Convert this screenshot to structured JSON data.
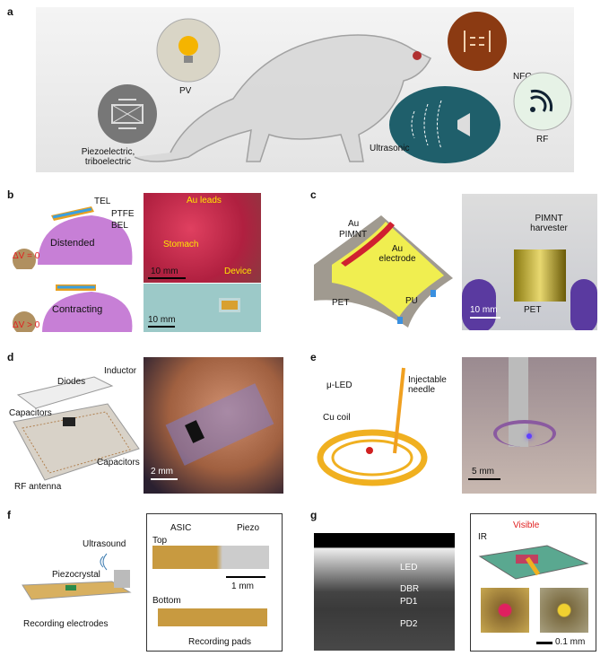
{
  "panels": {
    "a": {
      "label": "a",
      "sources": [
        "PV",
        "Piezoelectric, triboelectric",
        "NFC",
        "Ultrasonic",
        "RF"
      ]
    },
    "b": {
      "label": "b",
      "layers": [
        "TEL",
        "PTFE",
        "BEL"
      ],
      "states": [
        "Distended",
        "Contracting"
      ],
      "voltages": [
        "ΔV = 0",
        "ΔV > 0"
      ],
      "photo_labels": [
        "Au leads",
        "Stomach",
        "Device"
      ],
      "scale_top": "10 mm",
      "scale_bottom": "10 mm"
    },
    "c": {
      "label": "c",
      "diagram_labels": [
        "Au",
        "PIMNT",
        "Au electrode",
        "PET",
        "PU"
      ],
      "photo_labels": [
        "PIMNT harvester",
        "PET"
      ],
      "scale": "10 mm"
    },
    "d": {
      "label": "d",
      "diagram_labels": [
        "Inductor",
        "Diodes",
        "Capacitors",
        "Capacitors",
        "RF antenna"
      ],
      "scale": "2 mm"
    },
    "e": {
      "label": "e",
      "diagram_labels": [
        "μ-LED",
        "Injectable needle",
        "Cu coil"
      ],
      "scale": "5 mm"
    },
    "f": {
      "label": "f",
      "diagram_labels": [
        "Ultrasound",
        "Piezocrystal",
        "Recording electrodes"
      ],
      "photo_labels": [
        "ASIC",
        "Piezo",
        "Top",
        "Bottom",
        "Recording pads"
      ],
      "scale": "1 mm"
    },
    "g": {
      "label": "g",
      "sem_layers": [
        "LED",
        "DBR",
        "PD1",
        "PD2"
      ],
      "diagram_labels": [
        "IR",
        "Visible"
      ],
      "scale": "0.1 mm"
    }
  },
  "colors": {
    "panel_bg": "#ececec",
    "icon_brown": "#8b3a12",
    "icon_teal": "#1f5f6b",
    "bulb": "#f5b400",
    "stomach": "#c77fd6",
    "gold": "#e8c21a",
    "tissue": "#c42848",
    "glove": "#5a3aa0"
  }
}
